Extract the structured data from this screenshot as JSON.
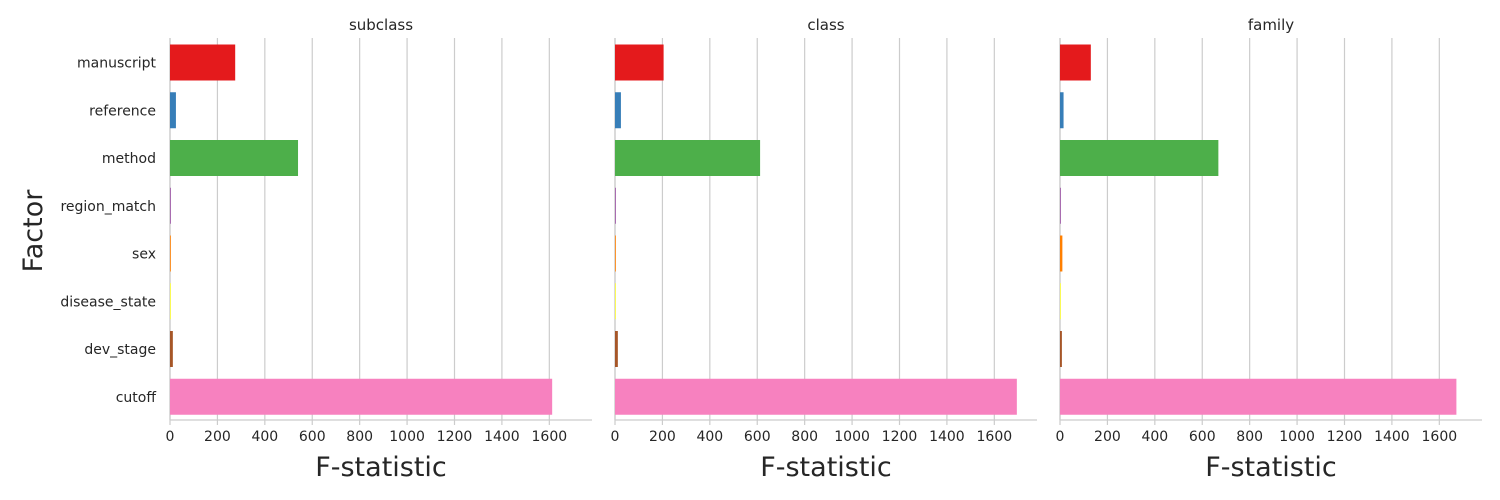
{
  "chart_data": {
    "type": "bar",
    "orientation": "horizontal",
    "ylabel": "Factor",
    "xlabel": "F-statistic",
    "categories": [
      "manuscript",
      "reference",
      "method",
      "region_match",
      "sex",
      "disease_state",
      "dev_stage",
      "cutoff"
    ],
    "colors": [
      "#e41a1c",
      "#377eb8",
      "#4daf4a",
      "#984ea3",
      "#ff7f00",
      "#ffff33",
      "#a65628",
      "#f781bf"
    ],
    "xlim": [
      0,
      1780
    ],
    "xticks": [
      0,
      200,
      400,
      600,
      800,
      1000,
      1200,
      1400,
      1600
    ],
    "grid": true,
    "panels": [
      {
        "title": "subclass",
        "values": [
          275,
          25,
          540,
          3,
          3,
          3,
          12,
          1612
        ]
      },
      {
        "title": "class",
        "values": [
          205,
          25,
          612,
          3,
          3,
          3,
          12,
          1695
        ]
      },
      {
        "title": "family",
        "values": [
          130,
          15,
          668,
          3,
          10,
          2,
          8,
          1672
        ]
      }
    ]
  }
}
